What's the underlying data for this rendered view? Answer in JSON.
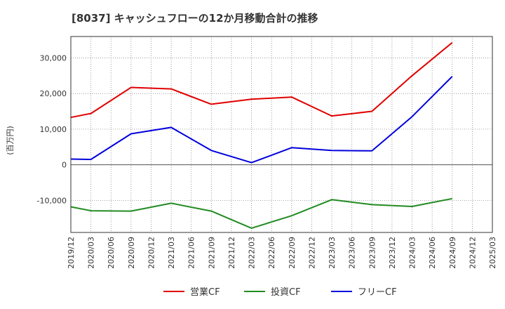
{
  "chart_data": {
    "type": "line",
    "title": "[8037]  キャッシュフローの12か月移動合計の推移",
    "xlabel": "",
    "ylabel": "(百万円)",
    "x_ticks": [
      "2019/12",
      "2020/03",
      "2020/06",
      "2020/09",
      "2020/12",
      "2021/03",
      "2021/06",
      "2021/09",
      "2021/12",
      "2022/03",
      "2022/06",
      "2022/09",
      "2022/12",
      "2023/03",
      "2023/06",
      "2023/09",
      "2023/12",
      "2024/03",
      "2024/06",
      "2024/09",
      "2024/12",
      "2025/03"
    ],
    "y_ticks": [
      -10000,
      0,
      10000,
      20000,
      30000
    ],
    "y_tick_labels": [
      "-10,000",
      "0",
      "10,000",
      "20,000",
      "30,000"
    ],
    "ylim": [
      -19000,
      36000
    ],
    "grid": true,
    "legend_position": "bottom",
    "series": [
      {
        "name": "営業CF",
        "color": "#e00000",
        "x": [
          "2019/12",
          "2020/03",
          "2020/09",
          "2021/03",
          "2021/09",
          "2022/03",
          "2022/09",
          "2023/03",
          "2023/09",
          "2024/03",
          "2024/09"
        ],
        "values": [
          13300,
          14400,
          21700,
          21300,
          17000,
          18400,
          19000,
          13700,
          15000,
          25000,
          34300
        ]
      },
      {
        "name": "投資CF",
        "color": "#228b22",
        "x": [
          "2019/12",
          "2020/03",
          "2020/09",
          "2021/03",
          "2021/09",
          "2022/03",
          "2022/09",
          "2023/03",
          "2023/09",
          "2024/03",
          "2024/09"
        ],
        "values": [
          -11800,
          -12900,
          -13000,
          -10800,
          -13000,
          -17800,
          -14300,
          -9800,
          -11200,
          -11700,
          -9500
        ]
      },
      {
        "name": "フリーCF",
        "color": "#0000dd",
        "x": [
          "2019/12",
          "2020/03",
          "2020/09",
          "2021/03",
          "2021/09",
          "2022/03",
          "2022/09",
          "2023/03",
          "2023/09",
          "2024/03",
          "2024/09"
        ],
        "values": [
          1600,
          1500,
          8700,
          10500,
          4000,
          600,
          4800,
          4000,
          3900,
          13500,
          24800
        ]
      }
    ]
  }
}
